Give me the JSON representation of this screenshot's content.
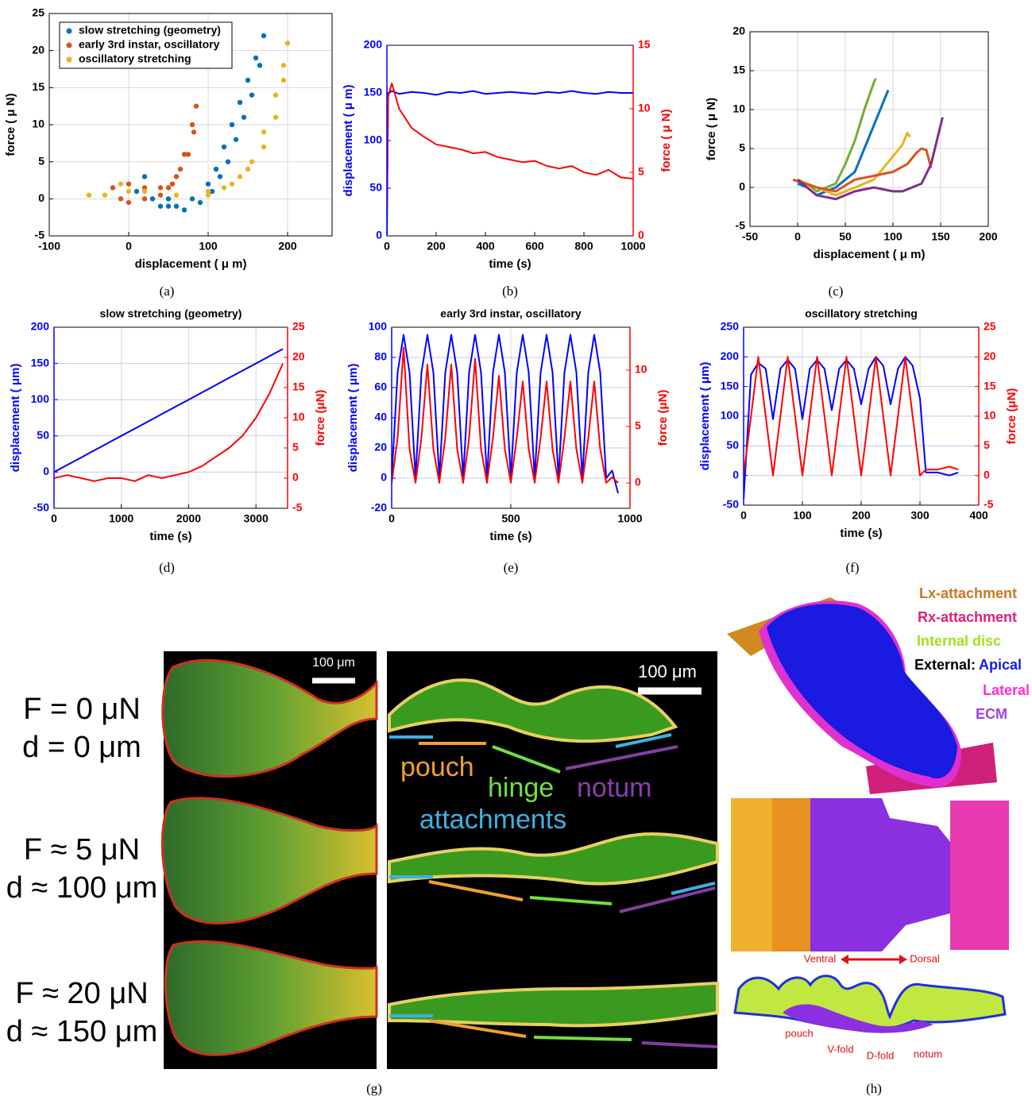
{
  "chart_data": [
    {
      "type": "scatter",
      "xlabel": "displacement ( μ m)",
      "ylabel": "force ( μ N)",
      "xlim": [
        -100,
        256
      ],
      "xticks": [
        -100,
        0,
        100,
        200
      ],
      "ylim": [
        -5,
        25
      ],
      "yticks": [
        -5,
        0,
        5,
        10,
        15,
        20,
        25
      ],
      "grid": true,
      "legend": "upper left",
      "series": [
        {
          "name": "slow stretching (geometry)",
          "color": "#0072bd",
          "x": [
            10,
            20,
            30,
            40,
            50,
            60,
            80,
            100,
            110,
            120,
            130,
            140,
            150,
            160,
            170,
            165,
            155,
            145,
            135,
            125,
            115,
            105,
            90,
            70,
            50
          ],
          "values": [
            1,
            3,
            0,
            -1,
            0,
            -1,
            0,
            2,
            4,
            7,
            10,
            13,
            16,
            19,
            22,
            18,
            14,
            11,
            8,
            5,
            3,
            1,
            -0.5,
            -1.5,
            -1
          ]
        },
        {
          "name": "early 3rd instar, oscillatory",
          "color": "#d95319",
          "x": [
            -20,
            -10,
            0,
            20,
            40,
            50,
            60,
            70,
            80,
            85,
            82,
            75,
            65,
            55,
            40,
            20,
            0
          ],
          "values": [
            1.5,
            0,
            -0.5,
            0,
            0.5,
            1.5,
            3,
            6,
            10,
            12.5,
            9,
            6,
            4,
            2,
            1.5,
            1.5,
            2
          ]
        },
        {
          "name": "oscillatory stretching",
          "color": "#edb120",
          "x": [
            -50,
            -30,
            -10,
            0,
            20,
            60,
            100,
            130,
            150,
            170,
            185,
            195,
            200,
            195,
            185,
            170,
            155,
            140,
            120,
            100
          ],
          "values": [
            0.5,
            0.5,
            2,
            1,
            1,
            0.5,
            0.5,
            2,
            4,
            7,
            11,
            16,
            21,
            18,
            14,
            9,
            5,
            3,
            1.5,
            1
          ]
        }
      ]
    },
    {
      "type": "line",
      "xlabel": "time (s)",
      "ylabel": "displacement ( μ m)",
      "y2label": "force ( μ N)",
      "xlim": [
        0,
        1000
      ],
      "xticks": [
        0,
        200,
        400,
        600,
        800,
        1000
      ],
      "ylim": [
        0,
        200
      ],
      "yticks": [
        0,
        50,
        100,
        150,
        200
      ],
      "y2lim": [
        0,
        15
      ],
      "y2ticks": [
        0,
        5,
        10,
        15
      ],
      "grid": false,
      "x": [
        0,
        5,
        20,
        50,
        100,
        150,
        200,
        250,
        300,
        350,
        400,
        450,
        500,
        550,
        600,
        650,
        700,
        750,
        800,
        850,
        900,
        950,
        1000
      ],
      "series": [
        {
          "color": "#0000ff",
          "values": [
            0,
            150,
            152,
            149,
            151,
            150,
            148,
            151,
            150,
            152,
            149,
            150,
            151,
            150,
            149,
            151,
            150,
            152,
            150,
            149,
            151,
            150,
            150
          ]
        },
        {
          "color": "#ff0000",
          "axis": "y2",
          "values": [
            2,
            11,
            12,
            10,
            8.5,
            7.8,
            7.2,
            7,
            6.8,
            6.5,
            6.6,
            6.2,
            6,
            5.8,
            5.9,
            5.5,
            5.3,
            5.5,
            5,
            4.8,
            5.2,
            4.6,
            4.5
          ]
        }
      ]
    },
    {
      "type": "line",
      "xlabel": "displacement ( μ m)",
      "ylabel": "force ( μ N)",
      "xlim": [
        -50,
        200
      ],
      "xticks": [
        -50,
        0,
        50,
        100,
        150,
        200
      ],
      "ylim": [
        -5,
        20
      ],
      "yticks": [
        -5,
        0,
        5,
        10,
        15,
        20
      ],
      "grid": true,
      "series": [
        {
          "color": "#77ac30",
          "x": [
            0,
            10,
            20,
            30,
            40,
            50,
            60,
            70,
            80,
            82
          ],
          "values": [
            1,
            0.5,
            -0.5,
            0,
            0.5,
            3,
            6,
            10,
            13.5,
            14
          ]
        },
        {
          "color": "#0072bd",
          "x": [
            0,
            10,
            20,
            30,
            40,
            50,
            60,
            70,
            80,
            90,
            95
          ],
          "values": [
            0.5,
            0,
            -1,
            -0.5,
            0,
            1,
            2,
            5,
            8,
            11,
            12.5
          ]
        },
        {
          "color": "#edb120",
          "x": [
            0,
            20,
            40,
            60,
            80,
            90,
            100,
            110,
            115,
            118
          ],
          "values": [
            1,
            0,
            -1,
            0,
            1,
            2.5,
            4,
            5.5,
            7,
            6.5
          ]
        },
        {
          "color": "#d95319",
          "x": [
            -5,
            20,
            40,
            60,
            80,
            100,
            115,
            125,
            130,
            135,
            140
          ],
          "values": [
            1,
            0,
            -0.5,
            1,
            1.5,
            2,
            3,
            4.5,
            5,
            4.8,
            2.5
          ]
        },
        {
          "color": "#7e2f8e",
          "x": [
            0,
            20,
            40,
            60,
            80,
            100,
            110,
            120,
            130,
            140,
            150,
            152
          ],
          "values": [
            1,
            -1,
            -1.5,
            -0.5,
            0,
            -0.5,
            -0.5,
            0,
            0.5,
            3,
            8,
            9
          ]
        }
      ]
    },
    {
      "type": "line",
      "title": "slow stretching (geometry)",
      "xlabel": "time (s)",
      "ylabel": "displacement ( μm)",
      "y2label": "force (μN)",
      "xlim": [
        0,
        3470
      ],
      "xticks": [
        0,
        1000,
        2000,
        3000
      ],
      "ylim": [
        -50,
        200
      ],
      "yticks": [
        -50,
        0,
        50,
        100,
        150,
        200
      ],
      "y2lim": [
        -5,
        25
      ],
      "y2ticks": [
        -5,
        0,
        5,
        10,
        15,
        20,
        25
      ],
      "grid": true,
      "x": [
        0,
        200,
        400,
        600,
        800,
        1000,
        1200,
        1400,
        1600,
        1800,
        2000,
        2200,
        2400,
        2600,
        2800,
        3000,
        3200,
        3400
      ],
      "series": [
        {
          "color": "#0000ff",
          "values": [
            0,
            10,
            20,
            30,
            40,
            50,
            60,
            70,
            80,
            90,
            100,
            110,
            120,
            130,
            140,
            150,
            160,
            170
          ]
        },
        {
          "color": "#ff0000",
          "axis": "y2",
          "values": [
            0,
            0.5,
            0,
            -0.5,
            0,
            0,
            -0.5,
            0.5,
            0,
            0.5,
            1,
            2,
            3.5,
            5,
            7,
            10,
            14,
            19
          ]
        }
      ]
    },
    {
      "type": "line",
      "title": "early 3rd instar, oscillatory",
      "xlabel": "time (s)",
      "ylabel": "displacement ( μm)",
      "y2label": "force (μN)",
      "xlim": [
        0,
        1000
      ],
      "xticks": [
        0,
        500,
        1000
      ],
      "ylim": [
        -20,
        100
      ],
      "yticks": [
        -20,
        0,
        20,
        40,
        60,
        80,
        100
      ],
      "y2lim": [
        -2.25,
        13.8
      ],
      "y2ticks": [
        0,
        5,
        10
      ],
      "grid": true,
      "x": [
        0,
        25,
        50,
        75,
        100,
        125,
        150,
        175,
        200,
        225,
        250,
        275,
        300,
        325,
        350,
        375,
        400,
        425,
        450,
        475,
        500,
        525,
        550,
        575,
        600,
        625,
        650,
        675,
        700,
        725,
        750,
        775,
        800,
        825,
        850,
        875,
        900,
        925,
        950
      ],
      "series": [
        {
          "color": "#0000ff",
          "values": [
            0,
            70,
            95,
            70,
            0,
            70,
            95,
            70,
            0,
            70,
            95,
            70,
            0,
            70,
            95,
            70,
            0,
            70,
            95,
            70,
            0,
            70,
            95,
            70,
            0,
            70,
            95,
            70,
            0,
            70,
            95,
            70,
            0,
            70,
            95,
            70,
            0,
            5,
            -10
          ]
        },
        {
          "color": "#ff0000",
          "axis": "y2",
          "values": [
            0,
            4,
            12,
            3,
            0,
            4,
            10.5,
            3,
            0,
            4,
            10.5,
            3,
            0,
            4,
            11,
            3,
            0,
            4,
            9.5,
            3,
            0,
            4,
            9,
            3,
            0,
            4,
            9,
            3,
            0,
            4,
            9,
            3,
            0,
            4,
            9,
            3,
            0,
            0.5,
            0
          ]
        }
      ]
    },
    {
      "type": "line",
      "title": "oscillatory stretching",
      "xlabel": "time (s)",
      "ylabel": "displacement ( μm)",
      "y2label": "force (μN)",
      "xlim": [
        0,
        400
      ],
      "xticks": [
        0,
        100,
        200,
        300,
        400
      ],
      "ylim": [
        -50,
        250
      ],
      "yticks": [
        -50,
        0,
        50,
        100,
        150,
        200,
        250
      ],
      "y2lim": [
        -5,
        25
      ],
      "y2ticks": [
        -5,
        0,
        5,
        10,
        15,
        20,
        25
      ],
      "grid": true,
      "x": [
        0,
        12.5,
        25,
        37.5,
        50,
        62.5,
        75,
        87.5,
        100,
        112.5,
        125,
        137.5,
        150,
        162.5,
        175,
        187.5,
        200,
        212.5,
        225,
        237.5,
        250,
        262.5,
        275,
        287.5,
        300,
        310,
        330,
        350,
        365
      ],
      "series": [
        {
          "color": "#0000ff",
          "values": [
            -40,
            170,
            190,
            180,
            95,
            180,
            195,
            180,
            95,
            180,
            195,
            180,
            110,
            180,
            195,
            180,
            120,
            180,
            200,
            185,
            120,
            180,
            200,
            185,
            130,
            5,
            5,
            0,
            5
          ]
        },
        {
          "color": "#ff0000",
          "axis": "y2",
          "values": [
            0,
            10,
            20,
            10,
            0,
            10,
            20,
            10,
            0,
            10,
            20,
            10,
            0,
            10,
            20,
            10,
            0,
            10,
            20,
            10,
            0,
            10,
            20,
            10,
            0,
            1,
            1,
            1.5,
            1
          ]
        }
      ]
    }
  ],
  "captions": [
    "(a)",
    "(b)",
    "(c)",
    "(d)",
    "(e)",
    "(f)",
    "(g)",
    "(h)"
  ],
  "panel_g": {
    "conditions": [
      {
        "force": "F = 0 μN",
        "displacement": "d = 0 μm"
      },
      {
        "force": "F ≈ 5 μN",
        "displacement": "d ≈ 100 μm"
      },
      {
        "force": "F ≈ 20 μN",
        "displacement": "d ≈ 150 μm"
      }
    ],
    "scale_bars": [
      "100 μm",
      "100 μm"
    ],
    "regions": [
      "pouch",
      "hinge",
      "notum",
      "attachments"
    ]
  },
  "panel_h": {
    "legend": [
      "Lx-attachment",
      "Rx-attachment",
      "Internal disc",
      "External:",
      "Apical",
      "Lateral",
      "ECM"
    ],
    "directions": [
      "Ventral",
      "Dorsal"
    ],
    "folds": [
      "pouch",
      "V-fold",
      "D-fold",
      "notum"
    ]
  }
}
